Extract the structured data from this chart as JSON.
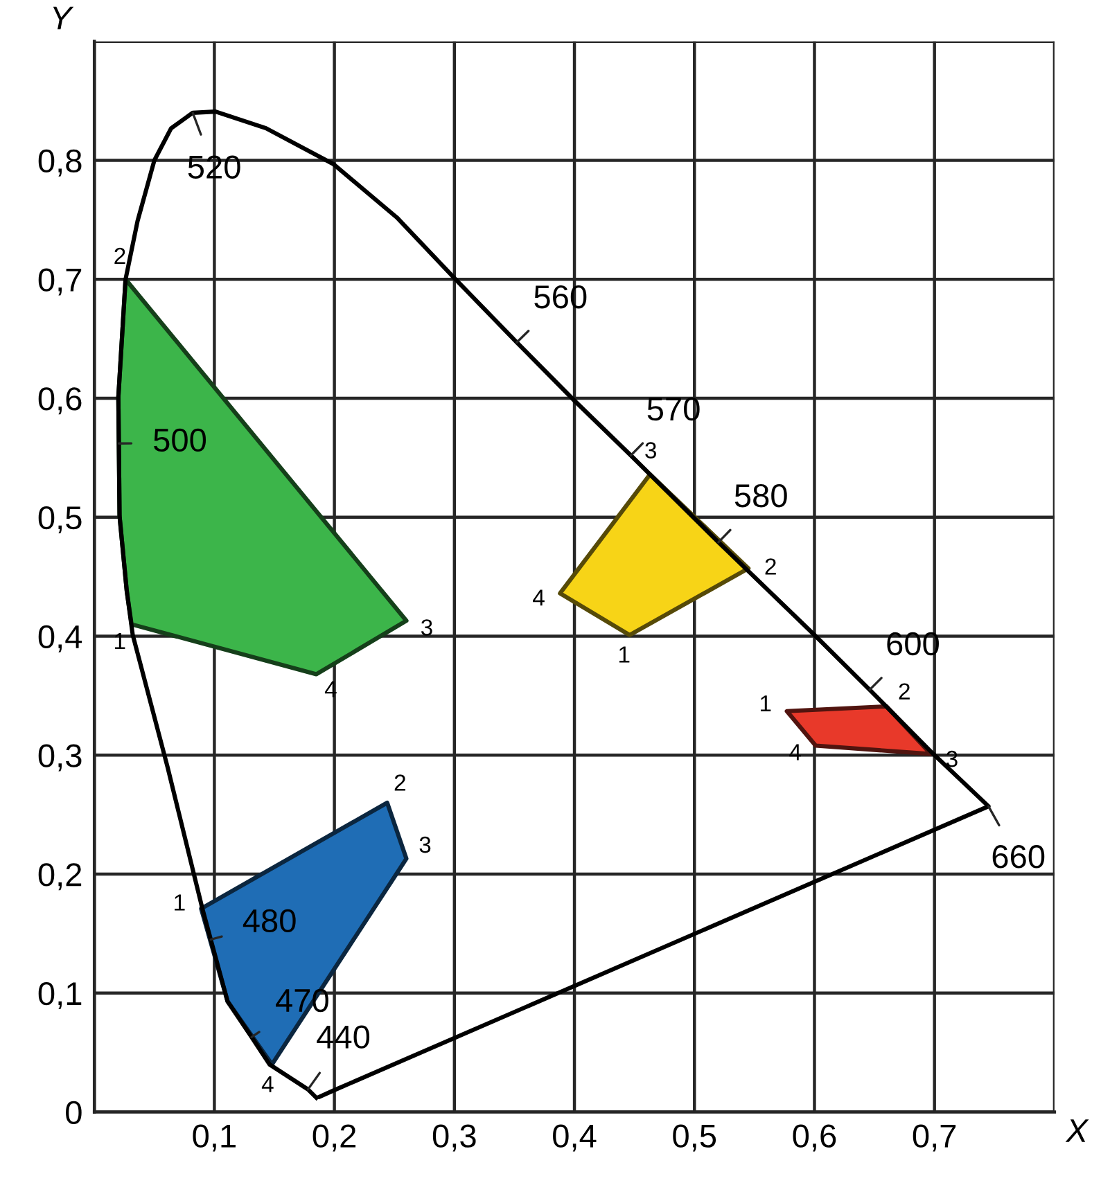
{
  "chart_data": {
    "type": "line",
    "xlabel": "X",
    "ylabel": "Y",
    "xlim": [
      0,
      0.8
    ],
    "ylim": [
      0,
      0.9
    ],
    "xticks": [
      {
        "value": 0,
        "label": null
      },
      {
        "value": 0.1,
        "label": "0,1"
      },
      {
        "value": 0.2,
        "label": "0,2"
      },
      {
        "value": 0.3,
        "label": "0,3"
      },
      {
        "value": 0.4,
        "label": "0,4"
      },
      {
        "value": 0.5,
        "label": "0,5"
      },
      {
        "value": 0.6,
        "label": "0,6"
      },
      {
        "value": 0.7,
        "label": "0,7"
      },
      {
        "value": 0.8,
        "label": null
      }
    ],
    "yticks": [
      0,
      {
        "value": 0.1,
        "label": "0,1"
      },
      {
        "value": 0.2,
        "label": "0,2"
      },
      {
        "value": 0.3,
        "label": "0,3"
      },
      {
        "value": 0.4,
        "label": "0,4"
      },
      {
        "value": 0.5,
        "label": "0,5"
      },
      {
        "value": 0.6,
        "label": "0,6"
      },
      {
        "value": 0.7,
        "label": "0,7"
      },
      {
        "value": 0.8,
        "label": "0,8"
      },
      {
        "value": 0.9,
        "label": null
      }
    ],
    "grid": true,
    "marker": "none",
    "line_style": "solid",
    "series": [
      {
        "color": "#000000",
        "x": [
          0.185,
          0.178,
          0.146,
          0.131,
          0.111,
          0.097,
          0.09,
          0.061,
          0.032,
          0.027,
          0.021,
          0.0204,
          0.02,
          0.026,
          0.036,
          0.05,
          0.064,
          0.082,
          0.101,
          0.143,
          0.199,
          0.252,
          0.301,
          0.352,
          0.399,
          0.447,
          0.5,
          0.52,
          0.6,
          0.646,
          0.699,
          0.745,
          0.199,
          0.188
        ],
        "values": [
          0.012,
          0.019,
          0.04,
          0.063,
          0.093,
          0.145,
          0.171,
          0.29,
          0.401,
          0.438,
          0.501,
          0.562,
          0.601,
          0.7,
          0.749,
          0.8,
          0.827,
          0.84,
          0.841,
          0.827,
          0.797,
          0.752,
          0.7,
          0.647,
          0.599,
          0.552,
          0.499,
          0.479,
          0.401,
          0.355,
          0.301,
          0.257,
          0.018,
          0.013
        ]
      },
      {
        "type": "area",
        "color": "#3cb54a",
        "x": [
          0.026,
          0.26,
          0.185,
          0.031,
          0.027,
          0.021,
          0.02
        ],
        "values": [
          0.7,
          0.413,
          0.368,
          0.41,
          0.438,
          0.501,
          0.601
        ]
      },
      {
        "type": "area",
        "color": "#1f6db5",
        "x": [
          0.089,
          0.244,
          0.26,
          0.148,
          0.111
        ],
        "values": [
          0.171,
          0.26,
          0.213,
          0.04,
          0.093
        ]
      },
      {
        "type": "area",
        "color": "#f7d417",
        "x": [
          0.463,
          0.545,
          0.446,
          0.388
        ],
        "values": [
          0.536,
          0.457,
          0.401,
          0.436
        ]
      },
      {
        "type": "area",
        "color": "#e8392a",
        "x": [
          0.577,
          0.66,
          0.697,
          0.601
        ],
        "values": [
          0.337,
          0.341,
          0.301,
          0.308
        ]
      }
    ],
    "annotations": [
      {
        "text": "520",
        "x": 0.082,
        "y": 0.84
      },
      {
        "text": "500",
        "x": 0.0204,
        "y": 0.562
      },
      {
        "text": "560",
        "x": 0.352,
        "y": 0.647
      },
      {
        "text": "570",
        "x": 0.447,
        "y": 0.552
      },
      {
        "text": "580",
        "x": 0.52,
        "y": 0.479
      },
      {
        "text": "600",
        "x": 0.646,
        "y": 0.355
      },
      {
        "text": "660",
        "x": 0.745,
        "y": 0.257
      },
      {
        "text": "480",
        "x": 0.097,
        "y": 0.145
      },
      {
        "text": "470",
        "x": 0.131,
        "y": 0.063
      },
      {
        "text": "440",
        "x": 0.178,
        "y": 0.019
      },
      {
        "text": "2",
        "x": 0.026,
        "y": 0.7
      },
      {
        "text": "3",
        "x": 0.26,
        "y": 0.413
      },
      {
        "text": "1",
        "x": 0.031,
        "y": 0.41
      },
      {
        "text": "4",
        "x": 0.185,
        "y": 0.368
      },
      {
        "text": "1",
        "x": 0.089,
        "y": 0.171
      },
      {
        "text": "2",
        "x": 0.244,
        "y": 0.26
      },
      {
        "text": "3",
        "x": 0.26,
        "y": 0.213
      },
      {
        "text": "4",
        "x": 0.148,
        "y": 0.04
      },
      {
        "text": "3",
        "x": 0.463,
        "y": 0.536
      },
      {
        "text": "2",
        "x": 0.545,
        "y": 0.457
      },
      {
        "text": "1",
        "x": 0.446,
        "y": 0.401
      },
      {
        "text": "4",
        "x": 0.388,
        "y": 0.436
      },
      {
        "text": "1",
        "x": 0.577,
        "y": 0.337
      },
      {
        "text": "2",
        "x": 0.66,
        "y": 0.341
      },
      {
        "text": "3",
        "x": 0.697,
        "y": 0.301
      },
      {
        "text": "4",
        "x": 0.601,
        "y": 0.308
      }
    ]
  }
}
